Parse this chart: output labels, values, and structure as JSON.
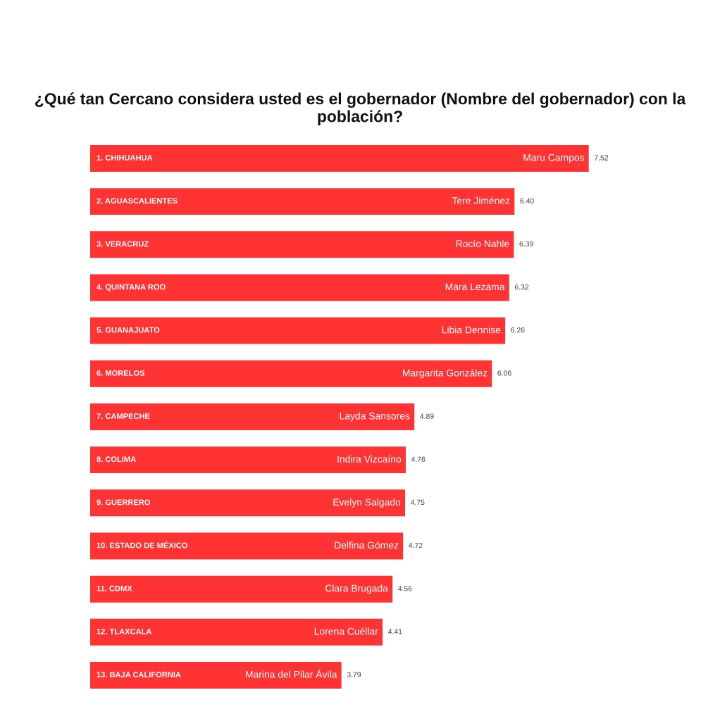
{
  "chart_data": {
    "type": "bar",
    "orientation": "horizontal",
    "title": "¿Qué tan Cercano considera usted es el gobernador (Nombre del gobernador) con la población?",
    "categories": [
      "1. CHIHUAHUA",
      "2. AGUASCALIENTES",
      "3. VERACRUZ",
      "4. QUINTANA ROO",
      "5. GUANAJUATO",
      "6. MORELOS",
      "7. CAMPECHE",
      "8. COLIMA",
      "9. GUERRERO",
      "10. ESTADO DE MÉXICO",
      "11. CDMX",
      "12. TLAXCALA",
      "13. BAJA CALIFORNIA"
    ],
    "values": [
      7.52,
      6.4,
      6.39,
      6.32,
      6.26,
      6.06,
      4.89,
      4.76,
      4.75,
      4.72,
      4.56,
      4.41,
      3.79
    ],
    "value_labels": [
      "7.52",
      "6.40",
      "6.39",
      "6.32",
      "6.26",
      "6.06",
      "4.89",
      "4.76",
      "4.75",
      "4.72",
      "4.56",
      "4.41",
      "3.79"
    ],
    "color": "#ff3333",
    "tick_labels": "y",
    "annotations": [
      {
        "text": "Maru Campos",
        "x": 7.52,
        "y": "1. CHIHUAHUA"
      },
      {
        "text": "Tere Jiménez",
        "x": 6.4,
        "y": "2. AGUASCALIENTES"
      },
      {
        "text": "Rocío Nahle",
        "x": 6.39,
        "y": "3. VERACRUZ"
      },
      {
        "text": "Mara Lezama",
        "x": 6.32,
        "y": "4. QUINTANA ROO"
      },
      {
        "text": "Libia Dennise",
        "x": 6.26,
        "y": "5. GUANAJUATO"
      },
      {
        "text": "Margarita González",
        "x": 6.06,
        "y": "6. MORELOS"
      },
      {
        "text": "Layda Sansores",
        "x": 4.89,
        "y": "7. CAMPECHE"
      },
      {
        "text": "Indira Vizcaíno",
        "x": 4.76,
        "y": "8. COLIMA"
      },
      {
        "text": "Evelyn Salgado",
        "x": 4.75,
        "y": "9. GUERRERO"
      },
      {
        "text": "Delfina Gómez",
        "x": 4.72,
        "y": "10. ESTADO DE MÉXICO"
      },
      {
        "text": "Clara Brugada",
        "x": 4.56,
        "y": "11. CDMX"
      },
      {
        "text": "Lorena Cuéllar",
        "x": 4.41,
        "y": "12. TLAXCALA"
      },
      {
        "text": "Marina del Pilar Ávila",
        "x": 3.79,
        "y": "13. BAJA CALIFORNIA"
      }
    ]
  }
}
